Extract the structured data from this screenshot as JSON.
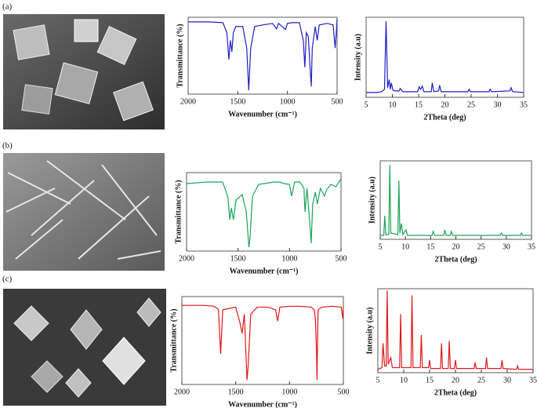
{
  "panel_labels": [
    "(a)",
    "(b)",
    "(c)"
  ],
  "chart_data": [
    {
      "type": "line",
      "x_label": "Wavenumber (cm⁻¹)",
      "y_label": "Transmittance (%)",
      "color": "#1f1fc8",
      "x": [
        2000,
        1800,
        1650,
        1610,
        1590,
        1575,
        1560,
        1545,
        1520,
        1450,
        1410,
        1390,
        1370,
        1330,
        1250,
        1150,
        1110,
        1090,
        1020,
        1000,
        950,
        880,
        840,
        825,
        810,
        790,
        770,
        760,
        750,
        720,
        700,
        680,
        600,
        540,
        520,
        505,
        500
      ],
      "values": [
        94,
        94,
        93,
        80,
        45,
        70,
        55,
        80,
        88,
        88,
        60,
        5,
        60,
        88,
        90,
        92,
        85,
        92,
        84,
        92,
        93,
        93,
        70,
        35,
        80,
        75,
        30,
        10,
        60,
        88,
        70,
        90,
        92,
        90,
        60,
        85,
        98
      ],
      "xlim": [
        2000,
        500
      ],
      "xticks": [
        2000,
        1500,
        1000,
        500
      ],
      "ylim": [
        0,
        100
      ]
    },
    {
      "type": "line",
      "x_label": "2Theta (deg)",
      "y_label": "Intensity (a.u)",
      "color": "#1f1fc8",
      "x": [
        5,
        7,
        8,
        8.5,
        8.8,
        9.1,
        9.4,
        9.6,
        9.8,
        10.1,
        10.5,
        11.3,
        11.5,
        12,
        14.8,
        15.1,
        15.4,
        15.7,
        16,
        17.4,
        17.6,
        17.9,
        18.8,
        19.0,
        19.3,
        24.4,
        24.6,
        24.9,
        28.4,
        28.6,
        28.9,
        32.4,
        32.6,
        32.9,
        35
      ],
      "values": [
        6,
        6,
        7,
        10,
        95,
        12,
        22,
        10,
        18,
        9,
        8,
        8,
        11,
        7,
        7,
        13,
        10,
        14,
        7,
        7,
        18,
        7,
        8,
        15,
        7,
        7,
        10,
        7,
        7,
        10,
        7,
        8,
        12,
        7,
        6
      ],
      "xlim": [
        5,
        35
      ],
      "xticks": [
        5,
        10,
        15,
        20,
        25,
        30,
        35
      ],
      "ylim": [
        0,
        100
      ]
    },
    {
      "type": "line",
      "x_label": "Wavenumber (cm⁻¹)",
      "y_label": "Transmittance (%)",
      "color": "#1aa55a",
      "x": [
        2000,
        1800,
        1650,
        1600,
        1580,
        1565,
        1545,
        1520,
        1460,
        1420,
        1395,
        1385,
        1360,
        1300,
        1200,
        1150,
        1100,
        1050,
        1000,
        980,
        950,
        900,
        860,
        850,
        830,
        800,
        790,
        775,
        750,
        730,
        700,
        660,
        640,
        600,
        550,
        520,
        500
      ],
      "values": [
        86,
        88,
        88,
        70,
        40,
        55,
        40,
        65,
        72,
        50,
        5,
        15,
        70,
        85,
        87,
        88,
        88,
        86,
        85,
        70,
        88,
        88,
        80,
        50,
        80,
        30,
        10,
        60,
        75,
        60,
        80,
        70,
        78,
        85,
        82,
        88,
        92
      ],
      "xlim": [
        2000,
        500
      ],
      "xticks": [
        2000,
        1500,
        1000,
        500
      ],
      "ylim": [
        0,
        100
      ]
    },
    {
      "type": "line",
      "x_label": "2Theta (deg)",
      "y_label": "Intensity (a.u)",
      "color": "#1aa55a",
      "x": [
        5,
        5.7,
        5.9,
        6.1,
        6.7,
        6.9,
        7.1,
        8.5,
        8.7,
        8.9,
        9.2,
        9.5,
        10.1,
        10.4,
        15.3,
        15.5,
        15.8,
        17.6,
        17.8,
        18.1,
        18.9,
        19.1,
        19.4,
        28.8,
        29,
        29.3,
        32.8,
        33,
        33.3,
        35
      ],
      "values": [
        5,
        5,
        30,
        6,
        6,
        95,
        8,
        6,
        75,
        8,
        20,
        6,
        12,
        5,
        5,
        10,
        5,
        5,
        12,
        5,
        5,
        10,
        5,
        5,
        8,
        5,
        5,
        8,
        5,
        5
      ],
      "xlim": [
        5,
        35
      ],
      "xticks": [
        5,
        10,
        15,
        20,
        25,
        30,
        35
      ],
      "ylim": [
        0,
        100
      ]
    },
    {
      "type": "line",
      "x_label": "Wavenumber (cm⁻¹)",
      "y_label": "Transmittance (%)",
      "color": "#e01818",
      "x": [
        2000,
        1800,
        1700,
        1660,
        1640,
        1620,
        1500,
        1460,
        1440,
        1420,
        1395,
        1385,
        1360,
        1300,
        1200,
        1130,
        1110,
        1090,
        1000,
        900,
        800,
        770,
        760,
        750,
        745,
        735,
        700,
        600,
        520,
        505,
        500
      ],
      "values": [
        90,
        90,
        89,
        85,
        35,
        85,
        88,
        70,
        58,
        80,
        5,
        20,
        80,
        88,
        88,
        85,
        72,
        88,
        89,
        89,
        88,
        85,
        75,
        40,
        5,
        85,
        88,
        89,
        88,
        75,
        88
      ],
      "xlim": [
        2000,
        500
      ],
      "xticks": [
        2000,
        1500,
        1000,
        500
      ],
      "ylim": [
        0,
        100
      ]
    },
    {
      "type": "line",
      "x_label": "2Theta (deg)",
      "y_label": "Intensity (a.u)",
      "color": "#e01818",
      "x": [
        5,
        5.8,
        6.0,
        6.3,
        6.6,
        6.8,
        7.0,
        7.5,
        7.8,
        9.2,
        9.4,
        9.6,
        11.4,
        11.6,
        11.8,
        13.2,
        13.4,
        13.6,
        14.8,
        15,
        15.2,
        17.1,
        17.3,
        17.5,
        18.6,
        18.8,
        19,
        19.8,
        20,
        20.2,
        23.6,
        23.8,
        24,
        25.8,
        26,
        26.2,
        28.8,
        29,
        29.2,
        31.8,
        32,
        32.2,
        35
      ],
      "values": [
        4,
        6,
        35,
        8,
        8,
        98,
        10,
        18,
        6,
        6,
        70,
        6,
        6,
        92,
        6,
        6,
        45,
        6,
        6,
        15,
        5,
        5,
        35,
        5,
        5,
        38,
        5,
        5,
        15,
        5,
        5,
        12,
        5,
        5,
        18,
        5,
        5,
        15,
        5,
        4,
        8,
        4,
        4
      ],
      "xlim": [
        5,
        35
      ],
      "xticks": [
        5,
        10,
        15,
        20,
        25,
        30,
        35
      ],
      "ylim": [
        0,
        100
      ]
    }
  ]
}
